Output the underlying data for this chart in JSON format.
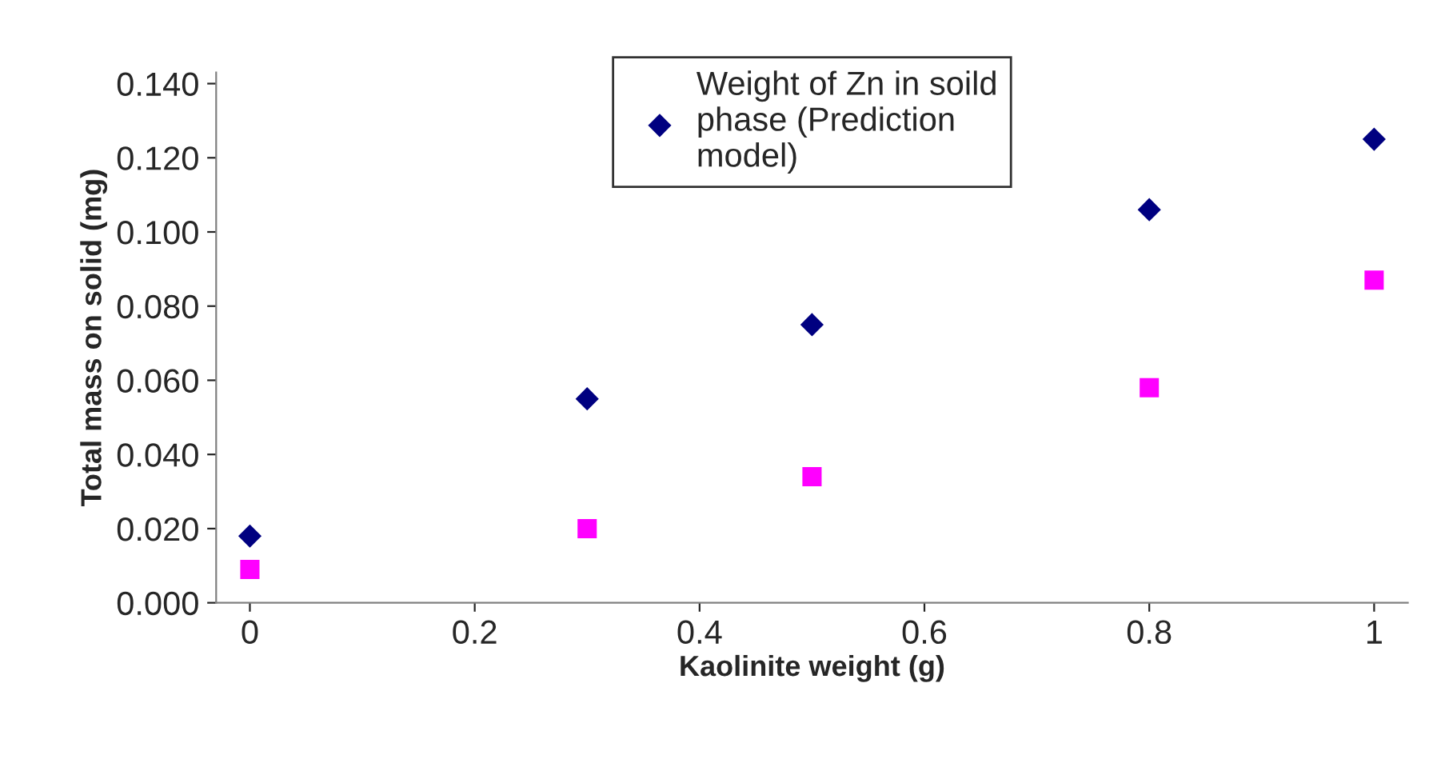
{
  "chart_data": {
    "type": "scatter",
    "xlabel": "Kaolinite weight (g)",
    "ylabel": "Total mass on solid (mg)",
    "x": [
      0,
      0.3,
      0.5,
      0.8,
      1
    ],
    "series": [
      {
        "name": "Weight of Zn in soild\nphase (Prediction\nmodel)",
        "color": "#000080",
        "marker": "diamond",
        "values": [
          0.018,
          0.055,
          0.075,
          0.106,
          0.125
        ]
      },
      {
        "color": "#ff00ff",
        "marker": "square",
        "values": [
          0.009,
          0.02,
          0.034,
          0.058,
          0.087
        ]
      }
    ],
    "xlim": [
      -0.03,
      1.03
    ],
    "xticks": [
      0,
      0.2,
      0.4,
      0.6,
      0.8,
      1
    ],
    "ylim": [
      0,
      0.143
    ],
    "yticks": [
      {
        "value": 0,
        "label": "0.000"
      },
      {
        "value": 0.02,
        "label": "0.020"
      },
      {
        "value": 0.04,
        "label": "0.040"
      },
      {
        "value": 0.06,
        "label": "0.060"
      },
      {
        "value": 0.08,
        "label": "0.080"
      },
      {
        "value": 0.1,
        "label": "0.100"
      },
      {
        "value": 0.12,
        "label": "0.120"
      },
      {
        "value": 0.14,
        "label": "0.140"
      }
    ],
    "grid": false,
    "legend": "top"
  }
}
